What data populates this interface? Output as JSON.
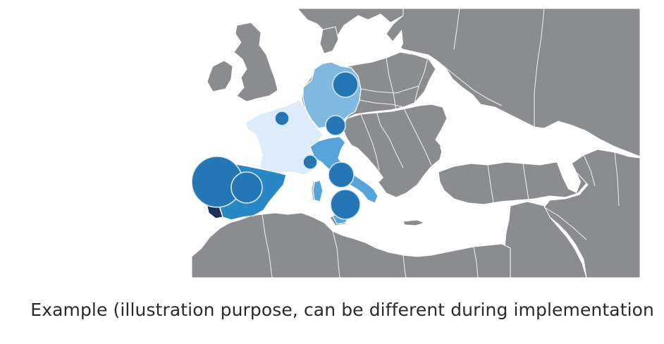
{
  "caption": "Example (illustration purpose, can be different during implementation",
  "map": {
    "region": "Europe and Mediterranean",
    "colors": {
      "background": "#ffffff",
      "land": "#8a8c90",
      "border": "#ffffff",
      "spain": "#2987c6",
      "portugal": "#16315a",
      "france": "#dcecfa",
      "germany": "#7fb9e0",
      "italy": "#57a3da",
      "bubble_fill": "#2476b4",
      "bubble_stroke": "#d5e6f3"
    },
    "highlighted_countries": [
      {
        "name": "Germany",
        "level": 2
      },
      {
        "name": "France",
        "level": 1
      },
      {
        "name": "Italy",
        "level": 3
      },
      {
        "name": "Spain",
        "level": 4
      },
      {
        "name": "Portugal",
        "level": 5
      }
    ],
    "bubbles": [
      {
        "location": "Portugal coast",
        "relative_size": 5
      },
      {
        "location": "Spain",
        "relative_size": 3
      },
      {
        "location": "Germany north",
        "relative_size": 2
      },
      {
        "location": "Germany south",
        "relative_size": 1.5
      },
      {
        "location": "France",
        "relative_size": 1
      },
      {
        "location": "Mediterranean (near Corsica)",
        "relative_size": 1
      },
      {
        "location": "Italy center",
        "relative_size": 2
      },
      {
        "location": "Italy south",
        "relative_size": 2.5
      }
    ]
  }
}
